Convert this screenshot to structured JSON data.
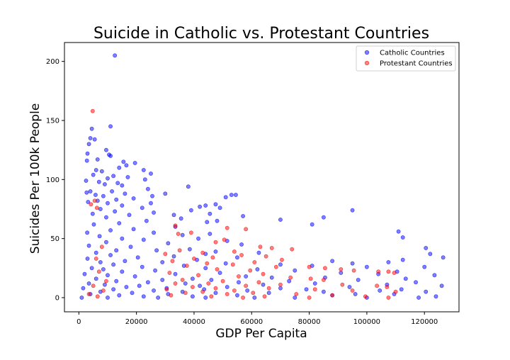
{
  "chart_data": {
    "type": "scatter",
    "title": "Suicide in Catholic vs. Protestant Countries",
    "xlabel": "GDP Per Capita",
    "ylabel": "Suicides Per 100k People",
    "xlim": [
      -5000,
      132000
    ],
    "ylim": [
      -12,
      216
    ],
    "xticks": [
      0,
      20000,
      40000,
      60000,
      80000,
      100000,
      120000
    ],
    "yticks": [
      0,
      50,
      100,
      150,
      200
    ],
    "grid": false,
    "legend_position": "top-right",
    "series": [
      {
        "name": "Catholic Countries",
        "color": "#0000ff",
        "points": [
          [
            12500,
            205
          ],
          [
            11000,
            145
          ],
          [
            4500,
            143
          ],
          [
            4000,
            135
          ],
          [
            5500,
            134
          ],
          [
            3500,
            130
          ],
          [
            9500,
            125
          ],
          [
            3000,
            122
          ],
          [
            10500,
            121
          ],
          [
            11000,
            120
          ],
          [
            6500,
            117
          ],
          [
            2800,
            116
          ],
          [
            15500,
            115
          ],
          [
            19500,
            114
          ],
          [
            16500,
            112
          ],
          [
            14000,
            110
          ],
          [
            22500,
            108
          ],
          [
            6000,
            108
          ],
          [
            8000,
            107
          ],
          [
            25000,
            105
          ],
          [
            5000,
            104
          ],
          [
            12000,
            103
          ],
          [
            17000,
            102
          ],
          [
            10000,
            101
          ],
          [
            23000,
            100
          ],
          [
            2500,
            99
          ],
          [
            7000,
            98
          ],
          [
            13500,
            97
          ],
          [
            9000,
            96
          ],
          [
            15000,
            95
          ],
          [
            38000,
            94
          ],
          [
            24000,
            92
          ],
          [
            4000,
            90
          ],
          [
            11500,
            90
          ],
          [
            2700,
            89
          ],
          [
            16000,
            88
          ],
          [
            30000,
            88
          ],
          [
            5800,
            87
          ],
          [
            8500,
            86
          ],
          [
            53000,
            87
          ],
          [
            54500,
            87
          ],
          [
            25500,
            86
          ],
          [
            51000,
            85
          ],
          [
            19000,
            84
          ],
          [
            13000,
            83
          ],
          [
            6500,
            82
          ],
          [
            3200,
            81
          ],
          [
            10000,
            80
          ],
          [
            25000,
            80
          ],
          [
            47500,
            79
          ],
          [
            15000,
            78
          ],
          [
            44000,
            78
          ],
          [
            42000,
            77
          ],
          [
            22000,
            76
          ],
          [
            49000,
            76
          ],
          [
            7500,
            75
          ],
          [
            39000,
            74
          ],
          [
            95000,
            74
          ],
          [
            12500,
            73
          ],
          [
            26000,
            72
          ],
          [
            4800,
            71
          ],
          [
            45500,
            71
          ],
          [
            33000,
            70
          ],
          [
            17500,
            70
          ],
          [
            57000,
            69
          ],
          [
            9500,
            68
          ],
          [
            85000,
            68
          ],
          [
            35500,
            67
          ],
          [
            70000,
            66
          ],
          [
            48000,
            65
          ],
          [
            23500,
            65
          ],
          [
            44500,
            64
          ],
          [
            14000,
            63
          ],
          [
            81000,
            62
          ],
          [
            5200,
            62
          ],
          [
            33500,
            60
          ],
          [
            19000,
            58
          ],
          [
            11000,
            57
          ],
          [
            111000,
            56
          ],
          [
            26000,
            55
          ],
          [
            2900,
            55
          ],
          [
            45500,
            54
          ],
          [
            36000,
            53
          ],
          [
            7200,
            52
          ],
          [
            112500,
            51
          ],
          [
            15000,
            50
          ],
          [
            41500,
            50
          ],
          [
            22500,
            49
          ],
          [
            51500,
            48
          ],
          [
            9500,
            47
          ],
          [
            31000,
            46
          ],
          [
            56500,
            45
          ],
          [
            3500,
            44
          ],
          [
            18000,
            43
          ],
          [
            120500,
            42
          ],
          [
            38500,
            41
          ],
          [
            13000,
            40
          ],
          [
            27000,
            40
          ],
          [
            47500,
            39
          ],
          [
            6000,
            38
          ],
          [
            62500,
            38
          ],
          [
            44000,
            37
          ],
          [
            122000,
            37
          ],
          [
            11000,
            36
          ],
          [
            33000,
            35
          ],
          [
            20500,
            34
          ],
          [
            55000,
            34
          ],
          [
            126500,
            34
          ],
          [
            3000,
            33
          ],
          [
            112500,
            32
          ],
          [
            41000,
            32
          ],
          [
            16000,
            31
          ],
          [
            88000,
            31
          ],
          [
            7500,
            30
          ],
          [
            107500,
            30
          ],
          [
            29000,
            30
          ],
          [
            51000,
            29
          ],
          [
            95000,
            29
          ],
          [
            12000,
            28
          ],
          [
            70000,
            28
          ],
          [
            36500,
            27
          ],
          [
            81000,
            27
          ],
          [
            22000,
            26
          ],
          [
            100000,
            26
          ],
          [
            4500,
            25
          ],
          [
            120000,
            26
          ],
          [
            44000,
            25
          ],
          [
            8500,
            24
          ],
          [
            62000,
            24
          ],
          [
            26500,
            23
          ],
          [
            75000,
            23
          ],
          [
            110500,
            22
          ],
          [
            15000,
            22
          ],
          [
            49000,
            21
          ],
          [
            91000,
            21
          ],
          [
            2000,
            20
          ],
          [
            33500,
            20
          ],
          [
            104000,
            20
          ],
          [
            123500,
            19
          ],
          [
            10000,
            19
          ],
          [
            58000,
            18
          ],
          [
            19500,
            18
          ],
          [
            67000,
            17
          ],
          [
            85500,
            17
          ],
          [
            39500,
            16
          ],
          [
            6000,
            16
          ],
          [
            113500,
            16
          ],
          [
            29000,
            15
          ],
          [
            46000,
            15
          ],
          [
            97000,
            15
          ],
          [
            13000,
            14
          ],
          [
            73000,
            14
          ],
          [
            24000,
            13
          ],
          [
            55500,
            13
          ],
          [
            117000,
            13
          ],
          [
            3500,
            12
          ],
          [
            37000,
            12
          ],
          [
            82000,
            12
          ],
          [
            107000,
            11
          ],
          [
            9000,
            11
          ],
          [
            64000,
            11
          ],
          [
            42000,
            10
          ],
          [
            21000,
            10
          ],
          [
            126000,
            10
          ],
          [
            16500,
            9
          ],
          [
            51500,
            9
          ],
          [
            94000,
            9
          ],
          [
            30500,
            8
          ],
          [
            70000,
            8
          ],
          [
            1500,
            8
          ],
          [
            112000,
            7
          ],
          [
            12000,
            7
          ],
          [
            43500,
            7
          ],
          [
            79000,
            7
          ],
          [
            26000,
            6
          ],
          [
            58500,
            6
          ],
          [
            104500,
            6
          ],
          [
            7500,
            5
          ],
          [
            36000,
            5
          ],
          [
            85000,
            5
          ],
          [
            120500,
            5
          ],
          [
            18500,
            4
          ],
          [
            47500,
            4
          ],
          [
            66000,
            4
          ],
          [
            96000,
            3
          ],
          [
            4000,
            3
          ],
          [
            31000,
            3
          ],
          [
            109500,
            3
          ],
          [
            14000,
            2
          ],
          [
            55000,
            2
          ],
          [
            88000,
            2
          ],
          [
            39500,
            1
          ],
          [
            22500,
            1
          ],
          [
            124000,
            1
          ],
          [
            1000,
            0
          ],
          [
            10000,
            0
          ],
          [
            27500,
            0
          ],
          [
            44000,
            0
          ],
          [
            61000,
            0
          ],
          [
            75000,
            0
          ],
          [
            100000,
            0
          ],
          [
            118000,
            0
          ]
        ]
      },
      {
        "name": "Protestant Countries",
        "color": "#ff0000",
        "points": [
          [
            4800,
            158
          ],
          [
            5500,
            82
          ],
          [
            4200,
            79
          ],
          [
            6300,
            76
          ],
          [
            51500,
            59
          ],
          [
            33500,
            61
          ],
          [
            58000,
            58
          ],
          [
            39000,
            55
          ],
          [
            34500,
            54
          ],
          [
            50500,
            49
          ],
          [
            47500,
            47
          ],
          [
            63000,
            43
          ],
          [
            8000,
            43
          ],
          [
            67000,
            42
          ],
          [
            74000,
            41
          ],
          [
            35000,
            40
          ],
          [
            54000,
            39
          ],
          [
            43000,
            38
          ],
          [
            30000,
            37
          ],
          [
            56500,
            36
          ],
          [
            65000,
            35
          ],
          [
            46500,
            34
          ],
          [
            40000,
            33
          ],
          [
            6000,
            33
          ],
          [
            70500,
            32
          ],
          [
            32500,
            31
          ],
          [
            61000,
            30
          ],
          [
            44500,
            29
          ],
          [
            53500,
            28
          ],
          [
            37500,
            27
          ],
          [
            68500,
            26
          ],
          [
            80000,
            26
          ],
          [
            85500,
            25
          ],
          [
            91000,
            24
          ],
          [
            95500,
            23
          ],
          [
            104000,
            22
          ],
          [
            107500,
            22
          ],
          [
            109500,
            21
          ],
          [
            48000,
            24
          ],
          [
            59500,
            23
          ],
          [
            7000,
            22
          ],
          [
            31500,
            21
          ],
          [
            64000,
            20
          ],
          [
            41500,
            19
          ],
          [
            55500,
            18
          ],
          [
            73500,
            17
          ],
          [
            80500,
            16
          ],
          [
            85000,
            15
          ],
          [
            36000,
            15
          ],
          [
            50000,
            14
          ],
          [
            9500,
            14
          ],
          [
            62500,
            13
          ],
          [
            45000,
            12
          ],
          [
            33500,
            12
          ],
          [
            70000,
            11
          ],
          [
            91500,
            11
          ],
          [
            58000,
            10
          ],
          [
            5000,
            10
          ],
          [
            103500,
            10
          ],
          [
            107000,
            9
          ],
          [
            39500,
            9
          ],
          [
            47500,
            8
          ],
          [
            66000,
            8
          ],
          [
            82000,
            7
          ],
          [
            30500,
            7
          ],
          [
            54000,
            6
          ],
          [
            95000,
            6
          ],
          [
            8500,
            6
          ],
          [
            110000,
            5
          ],
          [
            43000,
            5
          ],
          [
            60500,
            4
          ],
          [
            37000,
            4
          ],
          [
            75500,
            3
          ],
          [
            3500,
            3
          ],
          [
            51500,
            3
          ],
          [
            88000,
            2
          ],
          [
            32000,
            2
          ],
          [
            64500,
            1
          ],
          [
            99500,
            1
          ],
          [
            6500,
            1
          ],
          [
            46000,
            1
          ],
          [
            80000,
            0
          ],
          [
            57000,
            0
          ],
          [
            107500,
            0
          ]
        ]
      }
    ]
  }
}
